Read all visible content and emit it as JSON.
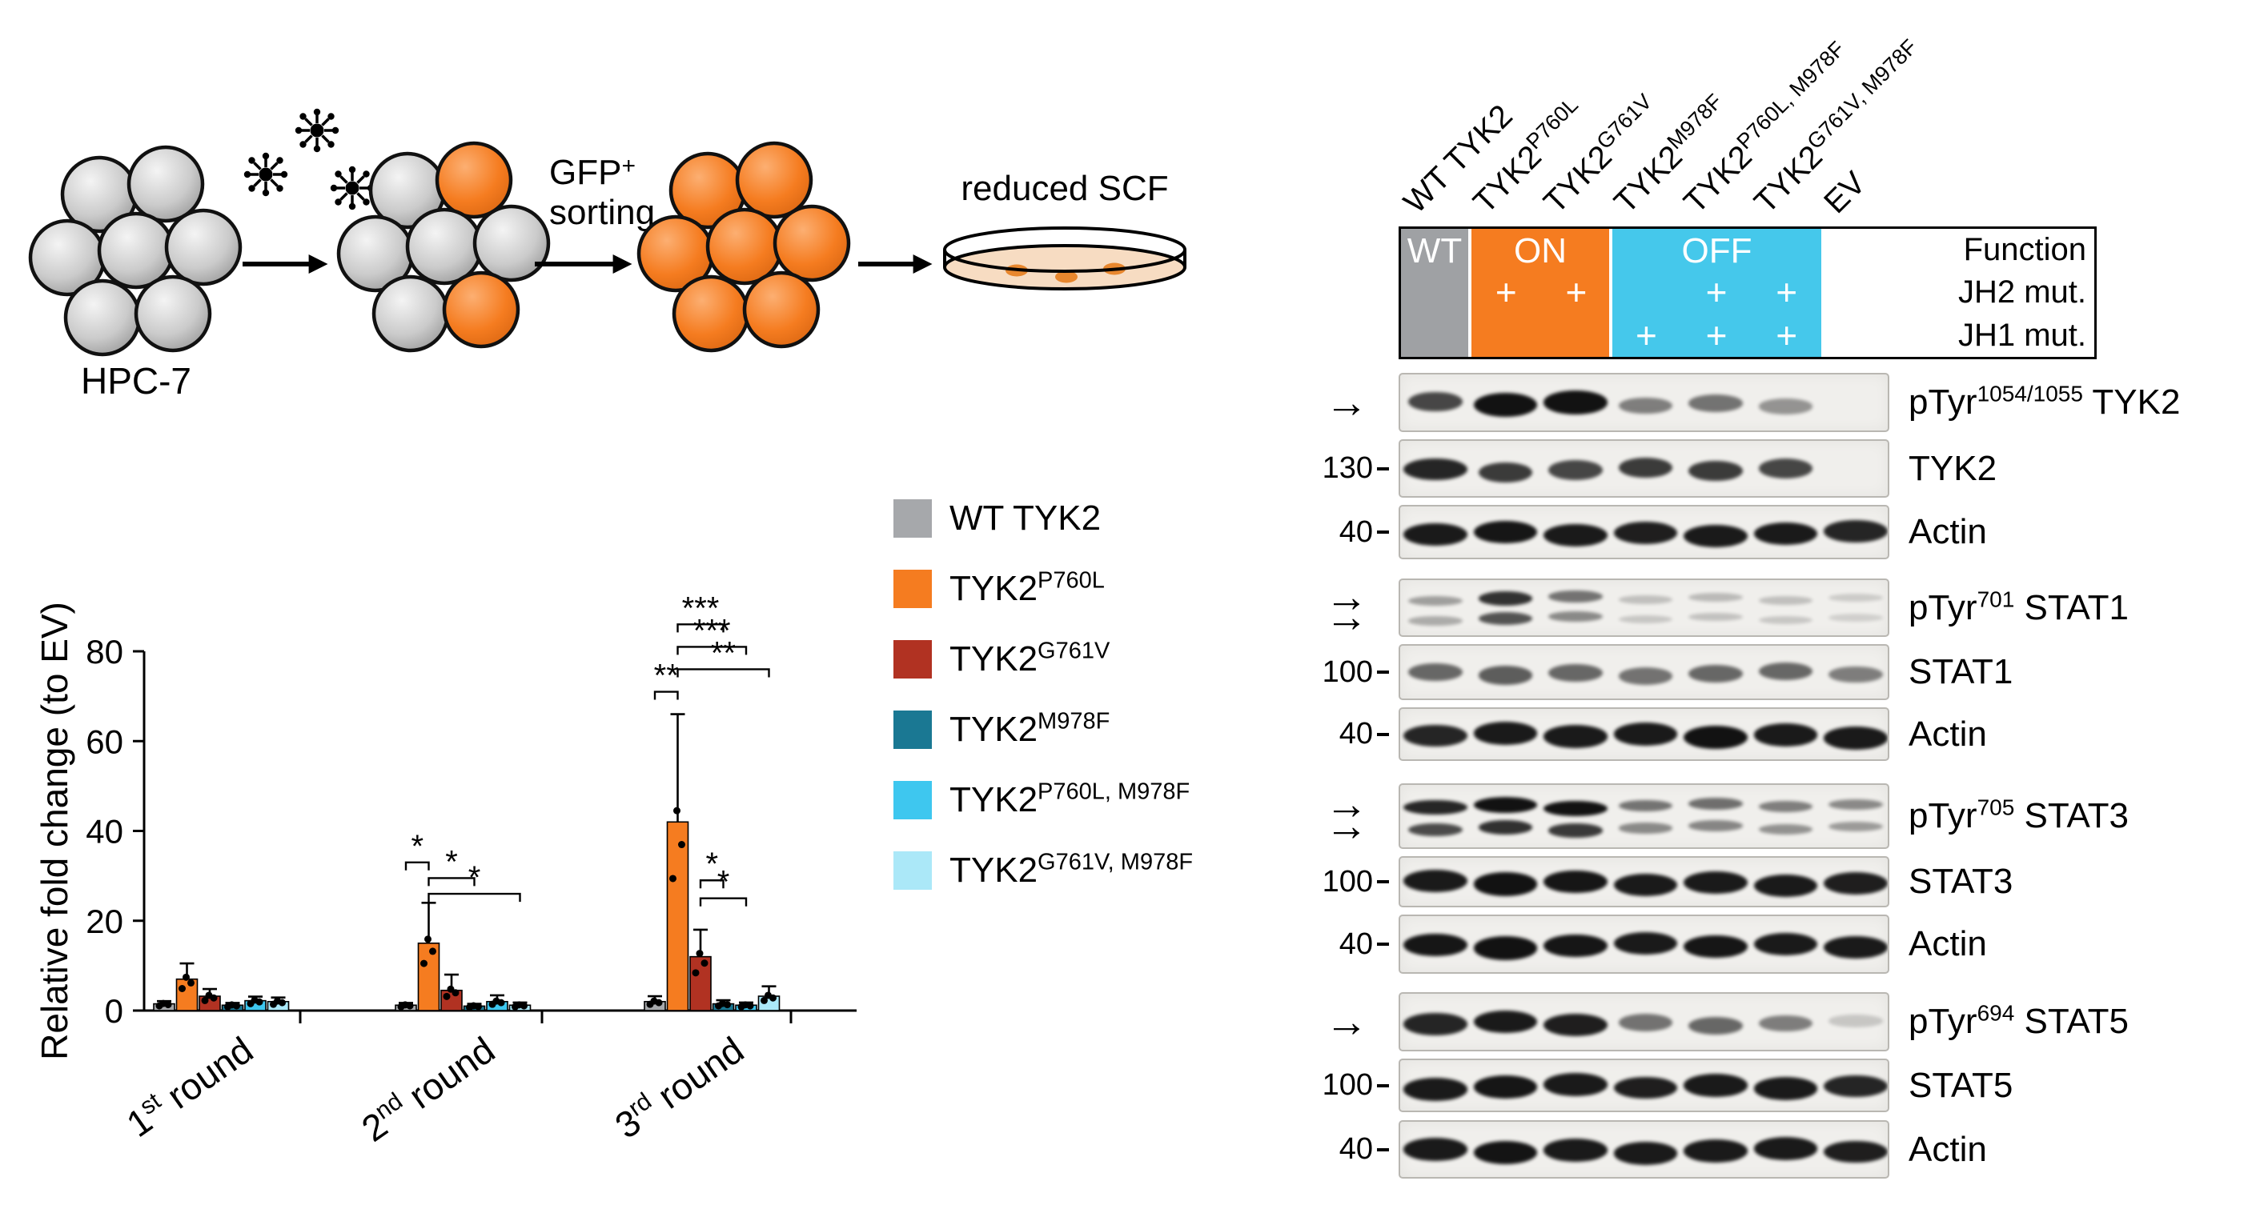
{
  "figure": {
    "background": "#ffffff"
  },
  "schematic": {
    "hpc7_label": "HPC-7",
    "gfp_base": "GFP",
    "gfp_plus": "+",
    "gfp_line2": "sorting",
    "reduced_scf_label": "reduced SCF"
  },
  "chart_data": {
    "type": "bar",
    "title": "",
    "ylabel": "Relative fold change (to EV)",
    "ylim": [
      0,
      80
    ],
    "yticks": [
      0,
      20,
      40,
      60,
      80
    ],
    "categories": [
      "1st round",
      "2nd round",
      "3rd round"
    ],
    "categories_rich": [
      {
        "n": "1",
        "sup": "st",
        "rest": "round"
      },
      {
        "n": "2",
        "sup": "nd",
        "rest": "round"
      },
      {
        "n": "3",
        "sup": "rd",
        "rest": "round"
      }
    ],
    "legend_position": "right",
    "grid": false,
    "series": [
      {
        "name_base": "WT TYK2",
        "name_sup": "",
        "color": "#A6A8AB",
        "values": [
          1.5,
          1.2,
          2.0
        ],
        "sd_upper": [
          0.6,
          0.5,
          1.2
        ]
      },
      {
        "name_base": "TYK2",
        "name_sup": "P760L",
        "color": "#F57C20",
        "values": [
          7.0,
          15.0,
          42.0
        ],
        "sd_upper": [
          3.5,
          9.0,
          24.0
        ]
      },
      {
        "name_base": "TYK2",
        "name_sup": "G761V",
        "color": "#B13222",
        "values": [
          3.2,
          4.5,
          12.0
        ],
        "sd_upper": [
          1.6,
          3.5,
          6.0
        ]
      },
      {
        "name_base": "TYK2",
        "name_sup": "M978F",
        "color": "#1A7893",
        "values": [
          1.2,
          1.0,
          1.5
        ],
        "sd_upper": [
          0.5,
          0.5,
          0.8
        ]
      },
      {
        "name_base": "TYK2",
        "name_sup": "P760L, M978F",
        "color": "#3EC7EF",
        "values": [
          2.2,
          2.0,
          1.2
        ],
        "sd_upper": [
          0.9,
          1.4,
          0.6
        ]
      },
      {
        "name_base": "TYK2",
        "name_sup": "G761V, M978F",
        "color": "#ABE8F8",
        "values": [
          2.0,
          1.2,
          3.2
        ],
        "sd_upper": [
          0.9,
          0.6,
          2.2
        ]
      }
    ],
    "significance": [
      {
        "group": 1,
        "from": 0,
        "to": 1,
        "value": 33,
        "label": "*"
      },
      {
        "group": 1,
        "from": 1,
        "to": 3,
        "value": 29.5,
        "label": "*"
      },
      {
        "group": 1,
        "from": 1,
        "to": 5,
        "value": 26,
        "label": "*"
      },
      {
        "group": 2,
        "from": 0,
        "to": 1,
        "value": 71,
        "label": "**"
      },
      {
        "group": 2,
        "from": 1,
        "to": 3,
        "value": 86,
        "label": "***"
      },
      {
        "group": 2,
        "from": 1,
        "to": 4,
        "value": 81,
        "label": "***"
      },
      {
        "group": 2,
        "from": 1,
        "to": 5,
        "value": 76,
        "label": "**"
      },
      {
        "group": 2,
        "from": 2,
        "to": 3,
        "value": 29,
        "label": "*"
      },
      {
        "group": 2,
        "from": 2,
        "to": 4,
        "value": 25,
        "label": "*"
      }
    ]
  },
  "blot_panel": {
    "lanes": [
      {
        "base": "WT TYK2",
        "sup": ""
      },
      {
        "base": "TYK2",
        "sup": "P760L"
      },
      {
        "base": "TYK2",
        "sup": "G761V"
      },
      {
        "base": "TYK2",
        "sup": "M978F"
      },
      {
        "base": "TYK2",
        "sup": "P760L, M978F"
      },
      {
        "base": "TYK2",
        "sup": "G761V, M978F"
      },
      {
        "base": "EV",
        "sup": ""
      }
    ],
    "header": {
      "wt_label": "WT",
      "on_label": "ON",
      "off_label": "OFF",
      "function_label": "Function",
      "jh2_label": "JH2 mut.",
      "jh1_label": "JH1 mut.",
      "plus_symbol": "+",
      "jh2_plus_lanes": [
        1,
        2,
        4,
        5
      ],
      "jh1_plus_lanes": [
        3,
        4,
        5
      ],
      "wt_color": "#9FA1A4",
      "on_color": "#F57C20",
      "off_color": "#45C8EB"
    },
    "rows": [
      {
        "label_pre": "pTyr",
        "label_sup": "1054/1055",
        "label_post": " TYK2",
        "mw": "",
        "arrows": 1,
        "double_band": false,
        "band_intensities": [
          0.7,
          1.0,
          0.95,
          0.45,
          0.5,
          0.35,
          0
        ]
      },
      {
        "label_pre": "TYK2",
        "label_sup": "",
        "label_post": "",
        "mw": "130",
        "arrows": 0,
        "double_band": false,
        "band_intensities": [
          0.85,
          0.75,
          0.7,
          0.75,
          0.75,
          0.7,
          0
        ]
      },
      {
        "label_pre": "Actin",
        "label_sup": "",
        "label_post": "",
        "mw": "40",
        "arrows": 0,
        "double_band": false,
        "band_intensities": [
          0.9,
          0.92,
          0.9,
          0.88,
          0.9,
          0.9,
          0.85
        ]
      },
      {
        "label_pre": "pTyr",
        "label_sup": "701",
        "label_post": " STAT1",
        "mw": "",
        "arrows": 2,
        "double_band": true,
        "band_intensities": [
          0.3,
          0.8,
          0.5,
          0.15,
          0.18,
          0.15,
          0.1
        ]
      },
      {
        "label_pre": "STAT1",
        "label_sup": "",
        "label_post": "",
        "mw": "100",
        "arrows": 0,
        "double_band": false,
        "band_intensities": [
          0.55,
          0.6,
          0.55,
          0.5,
          0.55,
          0.55,
          0.45
        ]
      },
      {
        "label_pre": "Actin",
        "label_sup": "",
        "label_post": "",
        "mw": "40",
        "arrows": 0,
        "double_band": false,
        "band_intensities": [
          0.85,
          0.9,
          0.9,
          0.9,
          0.95,
          0.9,
          0.9
        ]
      },
      {
        "label_pre": "pTyr",
        "label_sup": "705",
        "label_post": " STAT3",
        "mw": "",
        "arrows": 2,
        "double_band": true,
        "band_intensities": [
          0.85,
          1.0,
          0.95,
          0.5,
          0.52,
          0.45,
          0.4
        ]
      },
      {
        "label_pre": "STAT3",
        "label_sup": "",
        "label_post": "",
        "mw": "100",
        "arrows": 0,
        "double_band": false,
        "band_intensities": [
          0.9,
          0.95,
          0.92,
          0.9,
          0.9,
          0.9,
          0.88
        ]
      },
      {
        "label_pre": "Actin",
        "label_sup": "",
        "label_post": "",
        "mw": "40",
        "arrows": 0,
        "double_band": false,
        "band_intensities": [
          0.92,
          0.95,
          0.92,
          0.9,
          0.92,
          0.9,
          0.9
        ]
      },
      {
        "label_pre": "pTyr",
        "label_sup": "694",
        "label_post": " STAT5",
        "mw": "",
        "arrows": 1,
        "double_band": false,
        "band_intensities": [
          0.85,
          0.9,
          0.88,
          0.5,
          0.55,
          0.45,
          0.12
        ]
      },
      {
        "label_pre": "STAT5",
        "label_sup": "",
        "label_post": "",
        "mw": "100",
        "arrows": 0,
        "double_band": false,
        "band_intensities": [
          0.9,
          0.92,
          0.9,
          0.88,
          0.9,
          0.9,
          0.85
        ]
      },
      {
        "label_pre": "Actin",
        "label_sup": "",
        "label_post": "",
        "mw": "40",
        "arrows": 0,
        "double_band": false,
        "band_intensities": [
          0.9,
          0.93,
          0.9,
          0.9,
          0.9,
          0.9,
          0.88
        ]
      }
    ]
  }
}
